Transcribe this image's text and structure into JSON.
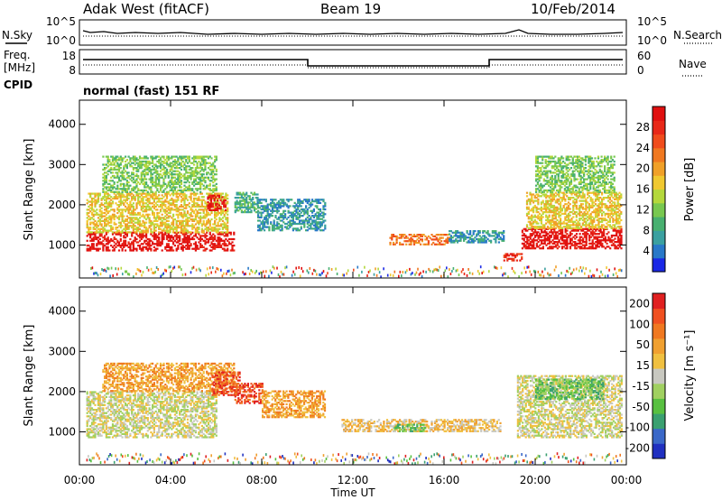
{
  "header": {
    "station": "Adak West (fitACF)",
    "beam": "Beam 19",
    "date": "10/Feb/2014"
  },
  "top_panels": {
    "nsky_label": "N.Sky",
    "nsearch_label": "N.Search",
    "freq_label_line1": "Freq.",
    "freq_label_line2": "[MHz]",
    "cpid_label": "CPID",
    "nave_label": "Nave",
    "noise_ticks_left": [
      "10^5",
      "10^0"
    ],
    "noise_ticks_right": [
      "10^5",
      "10^0"
    ],
    "freq_ticks": [
      "18",
      "8"
    ],
    "nave_ticks": [
      "60",
      "0"
    ],
    "cpid_text": "normal (fast) 151 RF"
  },
  "chart_data": [
    {
      "type": "heatmap",
      "name": "power",
      "ylabel": "Slant Range [km]",
      "yticks": [
        1000,
        2000,
        3000,
        4000
      ],
      "ylim": [
        180,
        4600
      ],
      "xlim": [
        0,
        24
      ],
      "colorbar": {
        "label": "Power [dB]",
        "ticks": [
          "4",
          "8",
          "12",
          "16",
          "20",
          "24",
          "28"
        ],
        "colors": [
          "#1a28e6",
          "#2878c8",
          "#3aa0a0",
          "#48b070",
          "#78c850",
          "#b4d83c",
          "#f0c830",
          "#f0a028",
          "#f07820",
          "#f04c1c",
          "#e82818",
          "#e01010"
        ]
      },
      "regions": [
        {
          "t0": 0.3,
          "t1": 6.8,
          "r0": 850,
          "r1": 1300,
          "level": 11
        },
        {
          "t0": 0.3,
          "t1": 6.5,
          "r0": 1300,
          "r1": 2300,
          "level": 6
        },
        {
          "t0": 1.0,
          "t1": 6.0,
          "r0": 2300,
          "r1": 3200,
          "level": 4
        },
        {
          "t0": 5.6,
          "t1": 6.4,
          "r0": 1850,
          "r1": 2250,
          "level": 11
        },
        {
          "t0": 6.8,
          "t1": 7.8,
          "r0": 1800,
          "r1": 2300,
          "level": 3
        },
        {
          "t0": 7.8,
          "t1": 10.8,
          "r0": 1350,
          "r1": 2150,
          "level": 2
        },
        {
          "t0": 13.6,
          "t1": 16.2,
          "r0": 1000,
          "r1": 1250,
          "level": 8
        },
        {
          "t0": 16.2,
          "t1": 18.6,
          "r0": 1050,
          "r1": 1350,
          "level": 2
        },
        {
          "t0": 18.6,
          "t1": 19.4,
          "r0": 600,
          "r1": 800,
          "level": 10
        },
        {
          "t0": 19.4,
          "t1": 23.8,
          "r0": 900,
          "r1": 1400,
          "level": 11
        },
        {
          "t0": 19.6,
          "t1": 23.8,
          "r0": 1400,
          "r1": 2300,
          "level": 6
        },
        {
          "t0": 20.0,
          "t1": 23.5,
          "r0": 2300,
          "r1": 3200,
          "level": 4
        }
      ]
    },
    {
      "type": "heatmap",
      "name": "velocity",
      "ylabel": "Slant Range [km]",
      "yticks": [
        1000,
        2000,
        3000,
        4000
      ],
      "ylim": [
        180,
        4600
      ],
      "xlim": [
        0,
        24
      ],
      "colorbar": {
        "label": "Velocity [m s⁻¹]",
        "ticks": [
          "200",
          "100",
          "50",
          "15",
          "-15",
          "-50",
          "-100",
          "-200"
        ],
        "colors": [
          "#2030c0",
          "#3a68c8",
          "#3aa070",
          "#58c040",
          "#a0d060",
          "#c8c8c0",
          "#f0c040",
          "#f0a030",
          "#f07820",
          "#f05020",
          "#e02020"
        ]
      },
      "regions": [
        {
          "t0": 0.3,
          "t1": 6.0,
          "r0": 850,
          "r1": 2000,
          "level": 5
        },
        {
          "t0": 1.0,
          "t1": 6.8,
          "r0": 2000,
          "r1": 2700,
          "level": 7
        },
        {
          "t0": 5.8,
          "t1": 7.0,
          "r0": 1900,
          "r1": 2500,
          "level": 9
        },
        {
          "t0": 6.8,
          "t1": 8.0,
          "r0": 1700,
          "r1": 2200,
          "level": 9
        },
        {
          "t0": 8.0,
          "t1": 10.8,
          "r0": 1350,
          "r1": 2000,
          "level": 7
        },
        {
          "t0": 11.5,
          "t1": 18.5,
          "r0": 1000,
          "r1": 1300,
          "level": 6
        },
        {
          "t0": 13.8,
          "t1": 15.2,
          "r0": 1000,
          "r1": 1200,
          "level": 3
        },
        {
          "t0": 19.2,
          "t1": 23.8,
          "r0": 850,
          "r1": 2400,
          "level": 5
        },
        {
          "t0": 20.0,
          "t1": 23.0,
          "r0": 1800,
          "r1": 2300,
          "level": 3
        }
      ]
    }
  ],
  "time_axis": {
    "label": "Time UT",
    "ticks": [
      "00:00",
      "04:00",
      "08:00",
      "12:00",
      "16:00",
      "20:00",
      "00:00"
    ]
  }
}
